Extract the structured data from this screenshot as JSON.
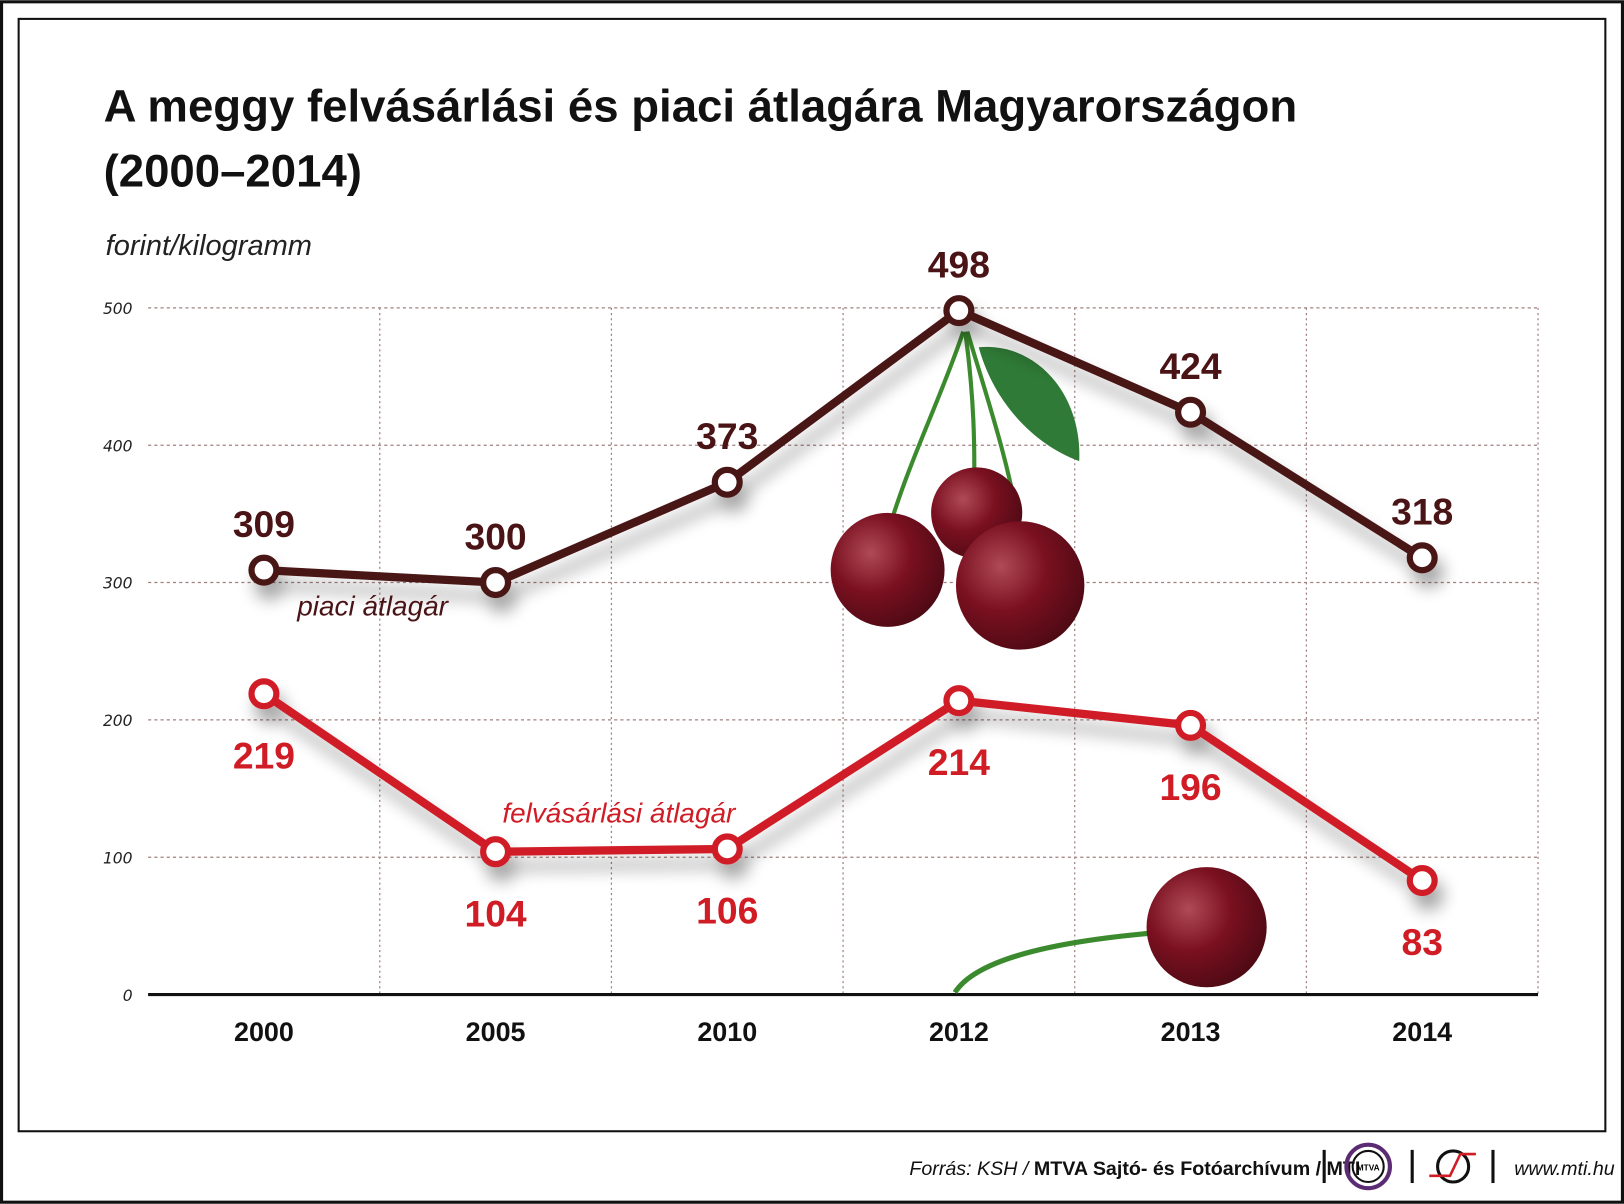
{
  "title_line1": "A meggy felvásárlási és piaci átlagára Magyarországon",
  "title_line2": "(2000–2014)",
  "footer": {
    "source_prefix": "Forrás: KSH / ",
    "source_bold": "MTVA Sajtó- és Fotóarchívum / MTI",
    "mtva_logo": "MTVA",
    "url": "www.mti.hu"
  },
  "chart_data": {
    "type": "line",
    "ylabel": "forint/kilogramm",
    "categories": [
      "2000",
      "2005",
      "2010",
      "2012",
      "2013",
      "2014"
    ],
    "ylim": [
      0,
      500
    ],
    "yticks": [
      "0",
      "100",
      "200",
      "300",
      "400",
      "500"
    ],
    "grid": true,
    "series": [
      {
        "name": "piaci átlagár",
        "color": "#4a1416",
        "values": [
          309,
          300,
          373,
          498,
          424,
          318
        ],
        "labels": [
          "309",
          "300",
          "373",
          "498",
          "424",
          "318"
        ]
      },
      {
        "name": "felvásárlási átlagár",
        "color": "#d01c25",
        "values": [
          219,
          104,
          106,
          214,
          196,
          83
        ],
        "labels": [
          "219",
          "104",
          "106",
          "214",
          "196",
          "83"
        ]
      }
    ]
  }
}
